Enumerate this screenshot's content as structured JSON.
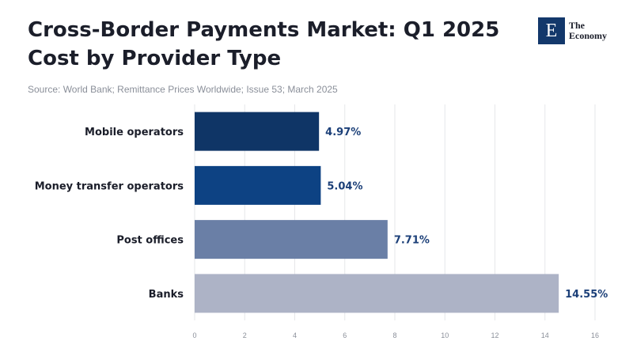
{
  "header": {
    "title_line1": "Cross-Border Payments Market: Q1 2025",
    "title_line2": "Cost by Provider Type",
    "source": "Source: World Bank; Remittance Prices Worldwide; Issue 53; March 2025"
  },
  "logo": {
    "mark": "E",
    "line1": "The",
    "line2": "Economy"
  },
  "chart_data": {
    "type": "bar",
    "orientation": "horizontal",
    "title": "Cross-Border Payments Market: Q1 2025 Cost by Provider Type",
    "categories": [
      "Mobile operators",
      "Money transfer operators",
      "Post offices",
      "Banks"
    ],
    "values": [
      4.97,
      5.04,
      7.71,
      14.55
    ],
    "value_labels": [
      "4.97%",
      "5.04%",
      "7.71%",
      "14.55%"
    ],
    "colors": [
      "#0f3566",
      "#0d4283",
      "#6a7fa6",
      "#adb3c6"
    ],
    "xlim": [
      0,
      16
    ],
    "xticks": [
      0,
      2,
      4,
      6,
      8,
      10,
      12,
      14,
      16
    ],
    "grid": true,
    "legend": "none"
  }
}
